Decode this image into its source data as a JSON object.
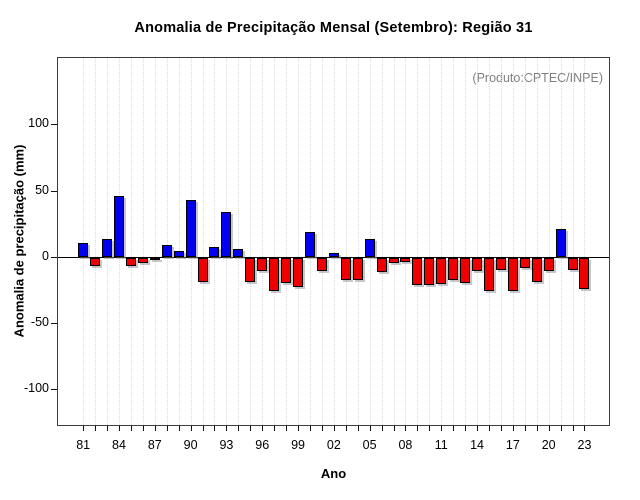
{
  "title": "Anomalia de Precipitação Mensal (Setembro): Região 31",
  "annotation": "(Produto:CPTEC/INPE)",
  "chart_data": {
    "type": "bar",
    "title": "Anomalia de Precipitação Mensal (Setembro): Região 31",
    "subtitle": "",
    "source_note": "(Produto:CPTEC/INPE)",
    "xlabel": "Ano",
    "ylabel": "Anomalia de precipitação (mm)",
    "categories": [
      "81",
      "82",
      "83",
      "84",
      "85",
      "86",
      "87",
      "88",
      "89",
      "90",
      "91",
      "92",
      "93",
      "94",
      "95",
      "96",
      "97",
      "98",
      "99",
      "00",
      "01",
      "02",
      "03",
      "04",
      "05",
      "06",
      "07",
      "08",
      "09",
      "10",
      "11",
      "12",
      "13",
      "14",
      "15",
      "16",
      "17",
      "18",
      "19",
      "20",
      "21",
      "22",
      "23"
    ],
    "values": [
      10,
      -6,
      13,
      46,
      -6,
      -4,
      -1,
      9,
      4,
      43,
      -18,
      7,
      34,
      6,
      -18,
      -10,
      -25,
      -19,
      -22,
      19,
      -10,
      3,
      -17,
      -17,
      13,
      -11,
      -4,
      -3,
      -21,
      -21,
      -20,
      -17,
      -19,
      -10,
      -25,
      -9,
      -25,
      -8,
      -18,
      -10,
      21,
      -9,
      -24
    ],
    "x_labeled_every": 3,
    "x_tick_labels": [
      "81",
      "84",
      "87",
      "90",
      "93",
      "96",
      "99",
      "02",
      "05",
      "08",
      "11",
      "14",
      "17",
      "20",
      "23"
    ],
    "yticks": [
      -100,
      -50,
      0,
      50,
      100
    ],
    "ylim": [
      -129,
      150
    ],
    "grid": "vertical-dotted",
    "legend": "none",
    "colors": {
      "positive_bar": "#0000ee",
      "negative_bar": "#ee0000",
      "bar_border": "#000000",
      "grid_line": "#dadada",
      "axis_box": "#3c3c3c",
      "zero_line": "#000000",
      "annotation_text": "#808080",
      "text": "#000000"
    }
  }
}
